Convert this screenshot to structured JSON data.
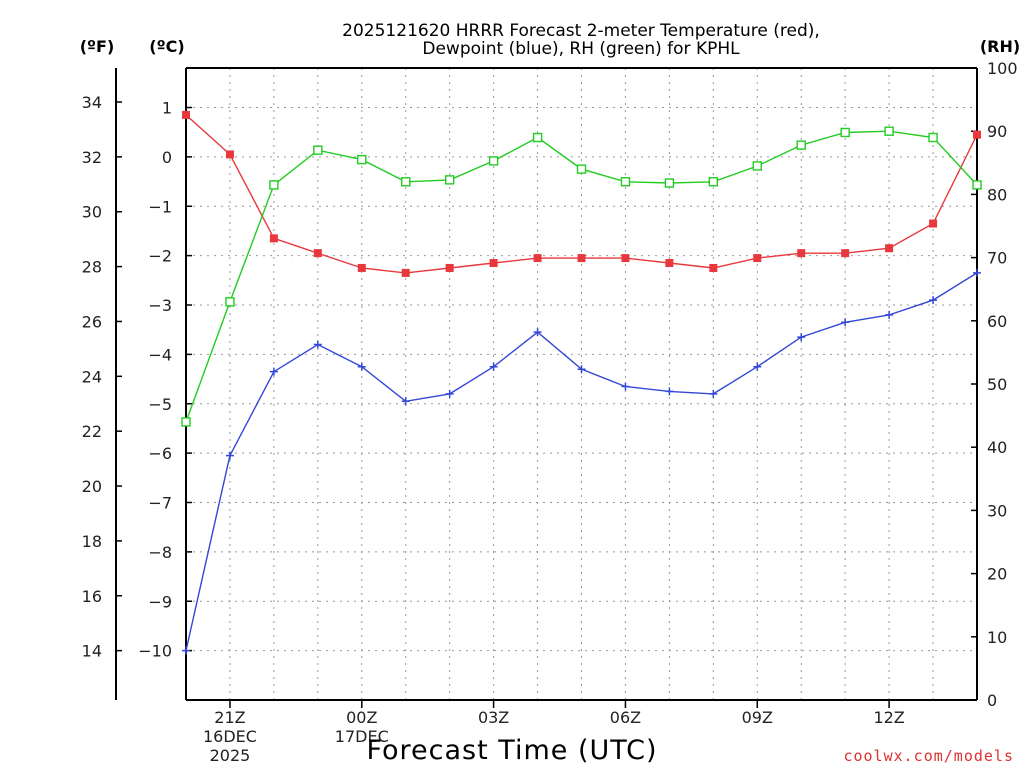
{
  "chart_data": {
    "type": "line",
    "title": [
      "2025121620 HRRR Forecast 2-meter Temperature (red),",
      "Dewpoint (blue), RH (green) for KPHL"
    ],
    "xlabel": "Forecast Time (UTC)",
    "credit": "coolwx.com/models",
    "units": {
      "fahrenheit": "(ºF)",
      "celsius": "(ºC)",
      "rh": "(RH)"
    },
    "x_hours": [
      0,
      1,
      2,
      3,
      4,
      5,
      6,
      7,
      8,
      9,
      10,
      11,
      12,
      13,
      14,
      15,
      16,
      17,
      18
    ],
    "x_ticks": [
      {
        "hour": 1,
        "lines": [
          "21Z",
          "16DEC",
          "2025"
        ]
      },
      {
        "hour": 4,
        "lines": [
          "00Z",
          "17DEC"
        ]
      },
      {
        "hour": 7,
        "lines": [
          "03Z"
        ]
      },
      {
        "hour": 10,
        "lines": [
          "06Z"
        ]
      },
      {
        "hour": 13,
        "lines": [
          "09Z"
        ]
      },
      {
        "hour": 16,
        "lines": [
          "12Z"
        ]
      }
    ],
    "y_celsius": {
      "lim": [
        -11,
        1.8
      ],
      "ticks": [
        1,
        0,
        -1,
        -2,
        -3,
        -4,
        -5,
        -6,
        -7,
        -8,
        -9,
        -10
      ]
    },
    "y_fahrenheit": {
      "ticks": [
        34,
        32,
        30,
        28,
        26,
        24,
        22,
        20,
        18,
        16,
        14
      ]
    },
    "y_rh": {
      "lim": [
        0,
        100
      ],
      "ticks": [
        100,
        90,
        80,
        70,
        60,
        50,
        40,
        30,
        20,
        10,
        0
      ]
    },
    "series": [
      {
        "name": "Temperature",
        "axis": "celsius",
        "color": "#e8383d",
        "marker": "filled-square",
        "values": [
          0.85,
          0.05,
          -1.65,
          -1.95,
          -2.25,
          -2.35,
          -2.25,
          -2.15,
          -2.05,
          -2.05,
          -2.05,
          -2.15,
          -2.25,
          -2.05,
          -1.95,
          -1.95,
          -1.85,
          -1.35,
          0.45
        ]
      },
      {
        "name": "Dewpoint",
        "axis": "celsius",
        "color": "#3347d8",
        "marker": "plus",
        "values": [
          -10.0,
          -6.05,
          -4.35,
          -3.8,
          -4.25,
          -4.95,
          -4.8,
          -4.25,
          -3.55,
          -4.3,
          -4.65,
          -4.75,
          -4.8,
          -4.25,
          -3.65,
          -3.35,
          -3.2,
          -2.9,
          -2.35
        ]
      },
      {
        "name": "RH",
        "axis": "rh",
        "color": "#22cc22",
        "marker": "open-square",
        "values": [
          44,
          63,
          81.5,
          87,
          85.5,
          82,
          82.3,
          85.3,
          89,
          84,
          82,
          81.8,
          82,
          84.5,
          87.8,
          89.8,
          90,
          89,
          81.5
        ]
      }
    ]
  }
}
